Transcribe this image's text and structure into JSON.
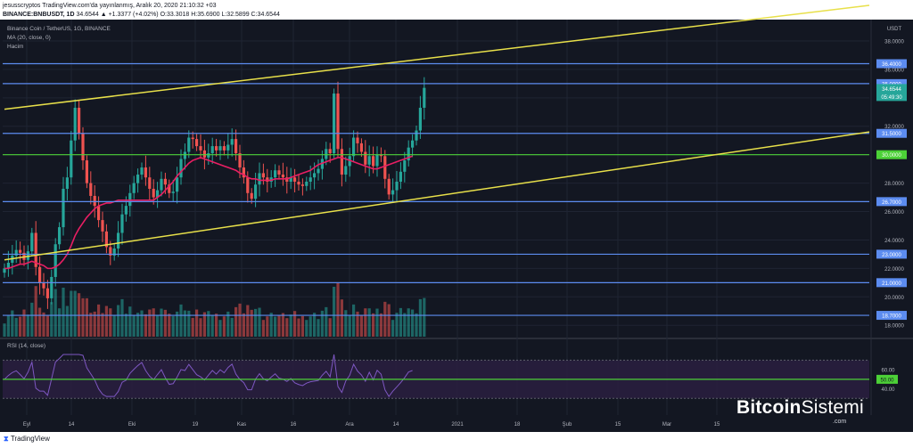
{
  "header": {
    "line1": "jesusscryptos TradingView.com'da yayınlanmış, Aralık 20, 2020 21:10:32 +03",
    "line2_symbol": "BINANCE:BNBUSDT, 1D",
    "line2_values": "34.6544 ▲ +1.3377 (+4.02%) O:33.3018 H:35.6900 L:32.5899 C:34.6544"
  },
  "legend": {
    "pair": "Binance Coin / TetherUS, 1G, BINANCE",
    "ma": "MA (20, close, 0)",
    "volume": "Hacim",
    "rsi": "RSI (14, close)"
  },
  "currency": "USDT",
  "footer": {
    "brand": "TradingView"
  },
  "watermark": {
    "name_bold": "Bitcoin",
    "name_rest": "Sistemi",
    "suffix": ".com"
  },
  "colors": {
    "background": "#131722",
    "grid": "#1f2433",
    "up": "#26a69a",
    "down": "#ef5350",
    "ma": "#e91e63",
    "level_blue": "#5c8cf0",
    "level_green": "#4cd137",
    "trend": "#e8e04a",
    "rsi_line": "#7e57c2",
    "rsi_band": "#2a1f40"
  },
  "chart_data": {
    "type": "candlestick",
    "y_range": [
      17.2,
      39.0
    ],
    "y_ticks": [
      "38.0000",
      "36.0000",
      "34.0000",
      "32.0000",
      "30.0000",
      "28.0000",
      "26.0000",
      "24.0000",
      "22.0000",
      "20.0000",
      "18.0000"
    ],
    "x_ticks": [
      "Eyl",
      "14",
      "Eki",
      "19",
      "Kas",
      "16",
      "Ara",
      "14",
      "2021",
      "18",
      "Şub",
      "15",
      "Mar",
      "15"
    ],
    "last_price": "34.6544",
    "countdown": "05:49:30",
    "levels": [
      {
        "value": 36.4,
        "label": "36.4000",
        "kind": "blue"
      },
      {
        "value": 35.0,
        "label": "35.0000",
        "kind": "blue"
      },
      {
        "value": 31.5,
        "label": "31.5000",
        "kind": "blue"
      },
      {
        "value": 30.0,
        "label": "30.0000",
        "kind": "green"
      },
      {
        "value": 26.7,
        "label": "26.7000",
        "kind": "blue"
      },
      {
        "value": 23.0,
        "label": "23.0000",
        "kind": "blue"
      },
      {
        "value": 21.0,
        "label": "21.0000",
        "kind": "blue"
      },
      {
        "value": 18.7,
        "label": "18.7000",
        "kind": "blue"
      }
    ],
    "closes": [
      22.0,
      22.4,
      22.9,
      23.3,
      23.1,
      22.6,
      23.2,
      24.5,
      22.1,
      21.0,
      20.6,
      19.9,
      21.4,
      23.7,
      24.9,
      27.6,
      28.4,
      31.0,
      33.3,
      31.5,
      29.6,
      28.0,
      27.1,
      26.4,
      25.4,
      24.6,
      23.5,
      22.9,
      23.4,
      24.5,
      25.8,
      26.4,
      27.3,
      28.0,
      28.6,
      29.1,
      28.4,
      27.6,
      27.0,
      27.5,
      28.3,
      27.9,
      27.3,
      27.4,
      28.4,
      29.7,
      30.2,
      31.2,
      31.1,
      30.6,
      30.3,
      29.8,
      30.1,
      30.6,
      30.3,
      30.6,
      30.3,
      30.7,
      31.1,
      30.1,
      29.1,
      28.4,
      27.3,
      26.9,
      27.9,
      28.7,
      28.4,
      28.1,
      28.4,
      28.9,
      28.6,
      28.4,
      28.1,
      28.4,
      28.1,
      27.9,
      27.8,
      28.1,
      28.4,
      28.7,
      29.0,
      29.7,
      30.4,
      30.1,
      34.3,
      30.4,
      28.6,
      29.2,
      29.9,
      31.2,
      30.8,
      30.2,
      29.3,
      29.9,
      29.2,
      30.0,
      29.9,
      28.3,
      27.2,
      27.5,
      28.1,
      28.8,
      29.6,
      30.5,
      31.0,
      31.7,
      33.3,
      34.7
    ],
    "ma20": [
      22.0,
      22.0,
      22.1,
      22.2,
      22.3,
      22.3,
      22.4,
      22.5,
      22.4,
      22.3,
      22.2,
      22.0,
      22.0,
      22.1,
      22.3,
      22.6,
      23.0,
      23.6,
      24.3,
      24.8,
      25.2,
      25.6,
      25.9,
      26.2,
      26.4,
      26.5,
      26.6,
      26.6,
      26.7,
      26.8,
      26.8,
      26.8,
      26.8,
      26.8,
      26.8,
      26.8,
      26.8,
      26.8,
      26.8,
      27.0,
      27.2,
      27.5,
      27.8,
      28.1,
      28.5,
      28.8,
      29.1,
      29.4,
      29.6,
      29.7,
      29.8,
      29.7,
      29.6,
      29.5,
      29.4,
      29.3,
      29.2,
      29.1,
      29.0,
      28.9,
      28.7,
      28.6,
      28.4,
      28.3,
      28.3,
      28.2,
      28.2,
      28.2,
      28.2,
      28.3,
      28.3,
      28.3,
      28.3,
      28.4,
      28.5,
      28.6,
      28.7,
      28.8,
      28.9,
      29.1,
      29.3,
      29.4,
      29.5,
      29.6,
      29.7,
      29.8,
      29.8,
      29.7,
      29.6,
      29.5,
      29.4,
      29.3,
      29.2,
      29.1,
      29.0,
      29.0,
      29.1,
      29.2,
      29.3,
      29.4,
      29.5,
      29.6,
      29.7,
      29.8,
      29.9
    ],
    "rsi": {
      "range": [
        20,
        90
      ],
      "ticks": [
        "60.00",
        "50.00",
        "40.00"
      ],
      "level": 50.0,
      "band": [
        30,
        70
      ]
    },
    "trendlines": [
      {
        "from": [
          0,
          33.2
        ],
        "to": [
          273,
          40.5
        ]
      },
      {
        "from": [
          0,
          22.6
        ],
        "to": [
          384,
          31.6
        ]
      }
    ]
  }
}
